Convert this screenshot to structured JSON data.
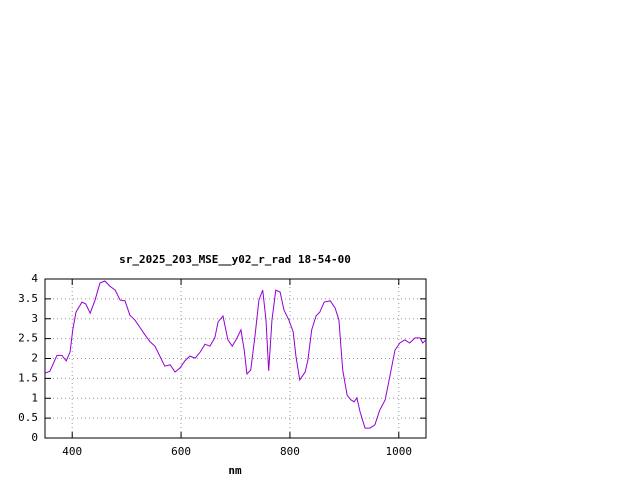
{
  "chart_data": {
    "type": "line",
    "title": "sr_2025_203_MSE__y02_r_rad 18-54-00",
    "x_label": "nm",
    "xlim": [
      350,
      1050
    ],
    "xticks": [
      400,
      600,
      800,
      1000
    ],
    "ylim": [
      0,
      4
    ],
    "yticks": [
      0,
      0.5,
      1,
      1.5,
      2,
      2.5,
      3,
      3.5,
      4
    ],
    "grid": true,
    "series": [
      {
        "color": "#9400d3",
        "x": [
          350,
          359,
          372,
          381,
          389,
          396,
          401,
          407,
          418,
          425,
          433,
          442,
          451,
          460,
          469,
          479,
          488,
          497,
          506,
          515,
          525,
          534,
          543,
          552,
          561,
          570,
          580,
          589,
          598,
          607,
          616,
          626,
          635,
          644,
          653,
          662,
          668,
          677,
          686,
          694,
          701,
          710,
          716,
          721,
          728,
          736,
          743,
          750,
          756,
          761,
          767,
          774,
          782,
          789,
          798,
          806,
          811,
          818,
          828,
          833,
          840,
          848,
          855,
          863,
          874,
          883,
          890,
          897,
          905,
          912,
          918,
          923,
          929,
          938,
          947,
          956,
          965,
          975,
          984,
          993,
          1002,
          1011,
          1020,
          1030,
          1039,
          1044,
          1050
        ],
        "values": [
          1.63,
          1.68,
          2.08,
          2.08,
          1.94,
          2.16,
          2.72,
          3.17,
          3.42,
          3.37,
          3.14,
          3.47,
          3.9,
          3.95,
          3.82,
          3.72,
          3.47,
          3.45,
          3.09,
          2.97,
          2.77,
          2.59,
          2.42,
          2.31,
          2.06,
          1.81,
          1.84,
          1.66,
          1.76,
          1.94,
          2.06,
          2.01,
          2.16,
          2.36,
          2.31,
          2.52,
          2.92,
          3.07,
          2.47,
          2.31,
          2.47,
          2.72,
          2.21,
          1.61,
          1.71,
          2.59,
          3.47,
          3.72,
          2.97,
          1.69,
          2.97,
          3.72,
          3.67,
          3.22,
          2.97,
          2.67,
          2.06,
          1.46,
          1.66,
          1.96,
          2.72,
          3.07,
          3.17,
          3.42,
          3.45,
          3.27,
          2.97,
          1.71,
          1.08,
          0.96,
          0.91,
          1.01,
          0.65,
          0.25,
          0.25,
          0.33,
          0.7,
          0.96,
          1.58,
          2.21,
          2.39,
          2.47,
          2.39,
          2.52,
          2.52,
          2.39,
          2.47
        ]
      }
    ]
  }
}
